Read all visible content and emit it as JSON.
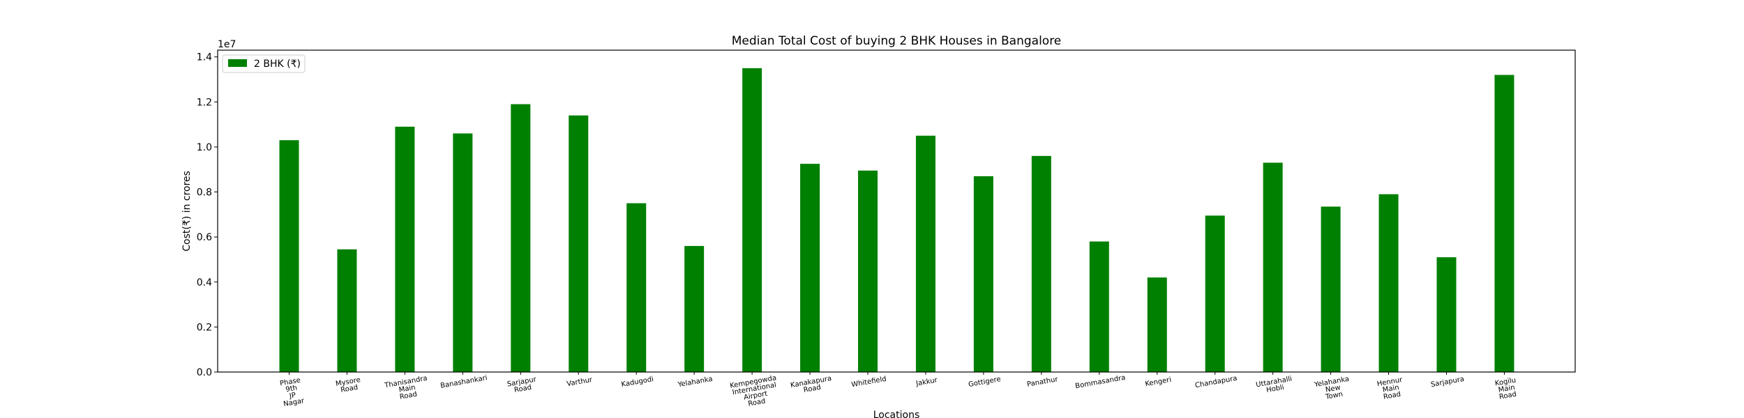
{
  "chart_data": {
    "type": "bar",
    "title": "Median Total Cost of buying 2 BHK Houses in Bangalore",
    "xlabel": "Locations",
    "ylabel": "Cost(₹) in crores",
    "offset_text": "1e7",
    "ylim": [
      0,
      14300000
    ],
    "yticks": [
      0,
      2000000,
      4000000,
      6000000,
      8000000,
      10000000,
      12000000,
      14000000
    ],
    "ytick_labels": [
      "0.0",
      "0.2",
      "0.4",
      "0.6",
      "0.8",
      "1.0",
      "1.2",
      "1.4"
    ],
    "grid": false,
    "legend_position": "top-left",
    "categories": [
      "Phase 9th JP Nagar",
      "Mysore Road",
      "Thanisandra Main Road",
      "Banashankari",
      "Sarjapur Road",
      "Varthur",
      "Kadugodi",
      "Yelahanka",
      "Kempegowda International Airport Road",
      "Kanakapura Road",
      "Whitefield",
      "Jakkur",
      "Gottigere",
      "Panathur",
      "Bommasandra",
      "Kengeri",
      "Chandapura",
      "Uttarahalli Hobli",
      "Yelahanka New Town",
      "Hennur Main Road",
      "Sarjapura",
      "Kogilu Main Road"
    ],
    "series": [
      {
        "name": "2 BHK (₹)",
        "color": "#008000",
        "values": [
          10300000,
          5450000,
          10900000,
          10600000,
          11900000,
          11400000,
          7500000,
          5600000,
          13500000,
          9250000,
          8950000,
          10500000,
          8700000,
          9600000,
          5800000,
          4200000,
          6950000,
          9300000,
          7350000,
          7900000,
          5100000,
          13200000
        ]
      }
    ]
  }
}
